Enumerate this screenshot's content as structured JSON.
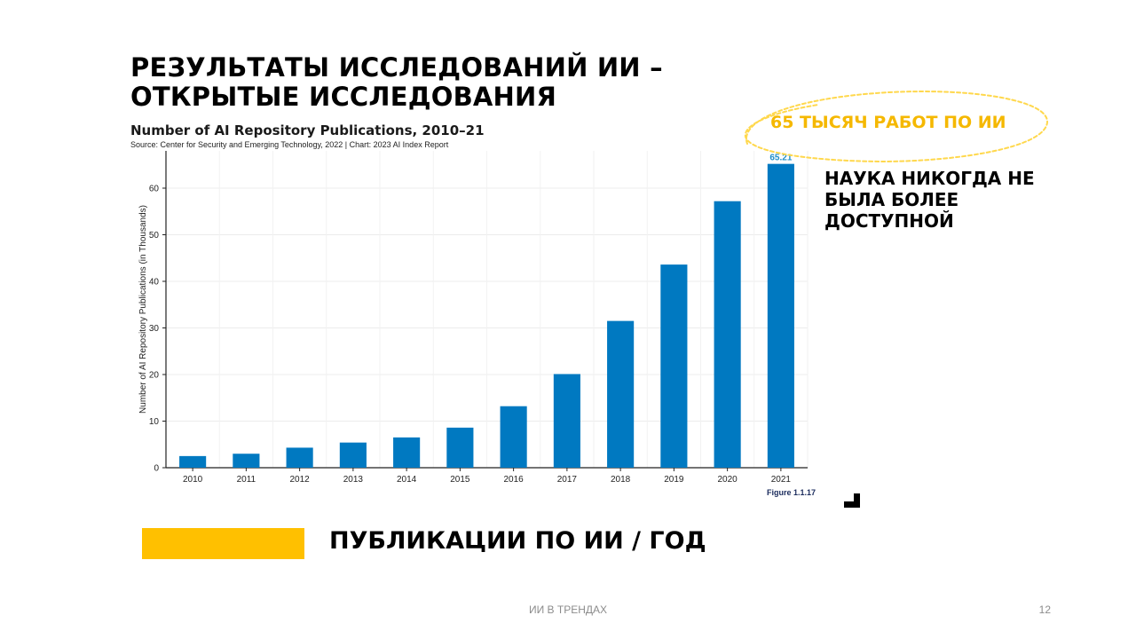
{
  "slide": {
    "title": "РЕЗУЛЬТАТЫ ИССЛЕДОВАНИЙ ИИ – ОТКРЫТЫЕ ИССЛЕДОВАНИЯ",
    "callout": "65 ТЫСЯЧ РАБОТ ПО ИИ",
    "side_note": "НАУКА НИКОГДА НЕ БЫЛА БОЛЕЕ ДОСТУПНОЙ",
    "caption": "ПУБЛИКАЦИИ ПО ИИ / ГОД",
    "footer": "ИИ В ТРЕНДАХ",
    "page_number": "12"
  },
  "colors": {
    "accent": "#ffc000",
    "callout_text": "#f5b800",
    "bar": "#0079c1",
    "data_label": "#1f8fc9"
  },
  "chart_data": {
    "type": "bar",
    "title": "Number of AI Repository Publications, 2010–21",
    "source": "Source: Center for Security and Emerging Technology, 2022 | Chart: 2023 AI Index Report",
    "figure": "Figure 1.1.17",
    "xlabel": "",
    "ylabel": "Number of AI Repository Publications (in Thousands)",
    "categories": [
      "2010",
      "2011",
      "2012",
      "2013",
      "2014",
      "2015",
      "2016",
      "2017",
      "2018",
      "2019",
      "2020",
      "2021"
    ],
    "values": [
      2.5,
      3.0,
      4.3,
      5.4,
      6.5,
      8.6,
      13.2,
      20.1,
      31.5,
      43.6,
      57.2,
      65.21
    ],
    "data_labels": {
      "11": "65.21"
    },
    "ylim": [
      0,
      68
    ],
    "yticks": [
      0,
      10,
      20,
      30,
      40,
      50,
      60
    ],
    "grid": true
  }
}
